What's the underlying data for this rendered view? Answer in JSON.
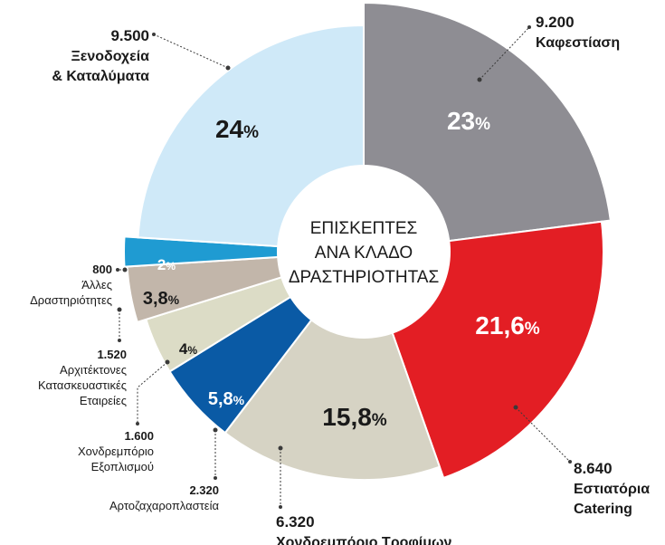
{
  "chart_data": {
    "type": "pie",
    "center_label": [
      "ΕΠΙΣΚΕΠΤΕΣ",
      "ΑΝΑ ΚΛΑΔΟ",
      "ΔΡΑΣΤΗΡΙΟΤΗΤΑΣ"
    ],
    "slices": [
      {
        "value": "9.200",
        "label": [
          "Καφεστίαση"
        ],
        "pct": "23",
        "color": "#8e8d93",
        "text_color": "#ffffff"
      },
      {
        "value": "8.640",
        "label": [
          "Εστιατόρια",
          "Catering"
        ],
        "pct": "21,6",
        "color": "#e31e24",
        "text_color": "#ffffff"
      },
      {
        "value": "6.320",
        "label": [
          "Χονδρεμπόριο Τροφίμων"
        ],
        "pct": "15,8",
        "color": "#d6d3c4",
        "text_color": "#1a1a1a"
      },
      {
        "value": "2.320",
        "label": [
          "Αρτοζαχαροπλαστεία"
        ],
        "pct": "5,8",
        "color": "#0a5aa5",
        "text_color": "#ffffff"
      },
      {
        "value": "1.600",
        "label": [
          "Χονδρεμπόριο",
          "Εξοπλισμού"
        ],
        "pct": "4",
        "color": "#dcdcc6",
        "text_color": "#1a1a1a"
      },
      {
        "value": "1.520",
        "label": [
          "Αρχιτέκτονες",
          "Κατασκευαστικές",
          "Εταιρείες"
        ],
        "pct": "3,8",
        "color": "#c2b6aa",
        "text_color": "#1a1a1a"
      },
      {
        "value": "800",
        "label": [
          "Άλλες",
          "Δραστηριότητες"
        ],
        "pct": "2",
        "color": "#1f9bd2",
        "text_color": "#ffffff"
      },
      {
        "value": "9.500",
        "label": [
          "Ξενοδοχεία",
          "& Καταλύματα"
        ],
        "pct": "24",
        "color": "#cfe9f8",
        "text_color": "#1a1a1a"
      }
    ]
  }
}
